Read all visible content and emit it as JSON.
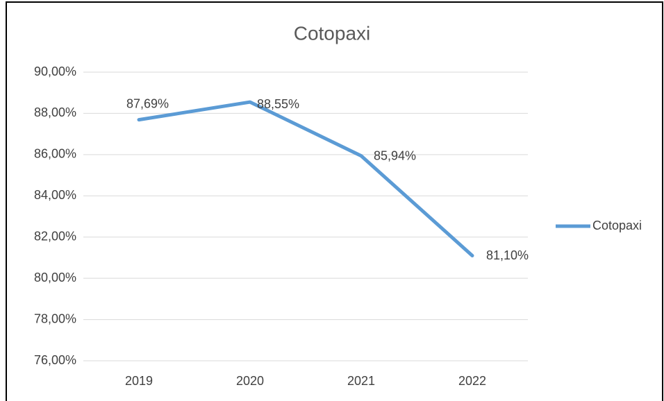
{
  "chart_data": {
    "type": "line",
    "title": "Cotopaxi",
    "categories": [
      "2019",
      "2020",
      "2021",
      "2022"
    ],
    "series": [
      {
        "name": "Cotopaxi",
        "color": "#5b9bd5",
        "values": [
          87.69,
          88.55,
          85.94,
          81.1
        ],
        "value_labels": [
          "87,69%",
          "88,55%",
          "85,94%",
          "81,10%"
        ]
      }
    ],
    "ylim": [
      76,
      90
    ],
    "yticks": [
      {
        "value": 76,
        "label": "76,00%"
      },
      {
        "value": 78,
        "label": "78,00%"
      },
      {
        "value": 80,
        "label": "80,00%"
      },
      {
        "value": 82,
        "label": "82,00%"
      },
      {
        "value": 84,
        "label": "84,00%"
      },
      {
        "value": 86,
        "label": "86,00%"
      },
      {
        "value": 88,
        "label": "88,00%"
      },
      {
        "value": 90,
        "label": "90,00%"
      }
    ],
    "grid": true,
    "legend": "right"
  }
}
